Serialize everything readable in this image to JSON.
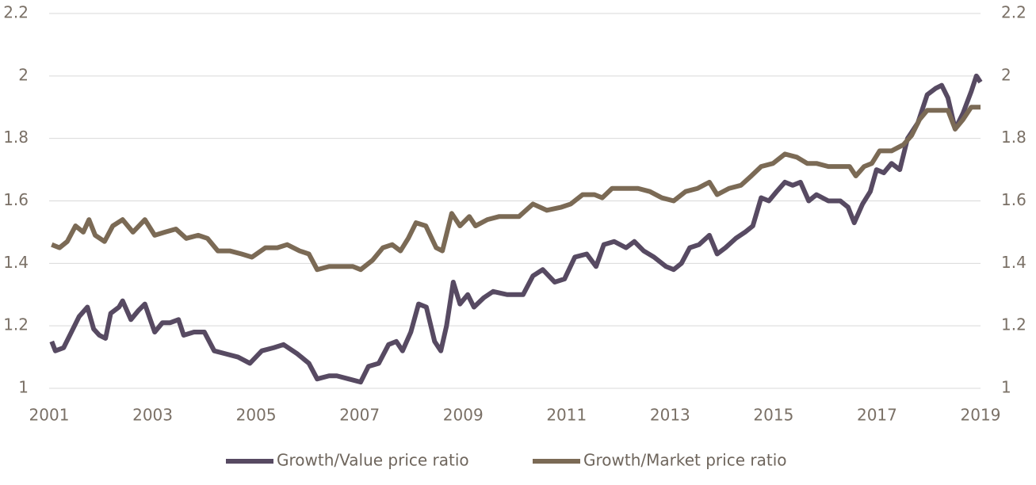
{
  "chart_data": {
    "type": "line",
    "xlim": [
      2001,
      2019
    ],
    "xticks": [
      2001,
      2003,
      2005,
      2007,
      2009,
      2011,
      2013,
      2015,
      2017,
      2019
    ],
    "ylim": [
      1,
      2.2
    ],
    "yticks": [
      1,
      1.2,
      1.4,
      1.6,
      1.8,
      2,
      2.2
    ],
    "y2lim": [
      1,
      2.2
    ],
    "y2ticks": [
      1,
      1.2,
      1.4,
      1.6,
      1.8,
      2,
      2.2
    ],
    "grid": true,
    "legend": "bottom",
    "series": [
      {
        "name": "Growth/Value price ratio",
        "color": "#574a62",
        "x": [
          2001.05,
          2001.12,
          2001.28,
          2001.43,
          2001.58,
          2001.74,
          2001.86,
          2001.97,
          2002.09,
          2002.19,
          2002.35,
          2002.42,
          2002.58,
          2002.73,
          2002.85,
          2003.04,
          2003.19,
          2003.34,
          2003.5,
          2003.6,
          2003.8,
          2004.0,
          2004.19,
          2004.42,
          2004.65,
          2004.88,
          2005.11,
          2005.34,
          2005.53,
          2005.8,
          2006.02,
          2006.18,
          2006.41,
          2006.56,
          2006.79,
          2007.02,
          2007.17,
          2007.37,
          2007.56,
          2007.71,
          2007.83,
          2007.99,
          2008.14,
          2008.29,
          2008.45,
          2008.57,
          2008.68,
          2008.81,
          2008.94,
          2009.09,
          2009.21,
          2009.4,
          2009.58,
          2009.85,
          2010.16,
          2010.35,
          2010.54,
          2010.77,
          2010.96,
          2011.16,
          2011.39,
          2011.57,
          2011.72,
          2011.92,
          2012.15,
          2012.31,
          2012.49,
          2012.69,
          2012.92,
          2013.07,
          2013.22,
          2013.38,
          2013.56,
          2013.76,
          2013.91,
          2014.07,
          2014.27,
          2014.45,
          2014.6,
          2014.76,
          2014.91,
          2015.06,
          2015.22,
          2015.37,
          2015.52,
          2015.68,
          2015.83,
          2016.06,
          2016.29,
          2016.44,
          2016.56,
          2016.72,
          2016.87,
          2016.99,
          2017.13,
          2017.28,
          2017.44,
          2017.59,
          2017.79,
          2017.97,
          2018.13,
          2018.25,
          2018.37,
          2018.51,
          2018.66,
          2018.82,
          2018.92,
          2019.0
        ],
        "values": [
          1.15,
          1.12,
          1.13,
          1.18,
          1.23,
          1.26,
          1.19,
          1.17,
          1.16,
          1.24,
          1.26,
          1.28,
          1.22,
          1.25,
          1.27,
          1.18,
          1.21,
          1.21,
          1.22,
          1.17,
          1.18,
          1.18,
          1.12,
          1.11,
          1.1,
          1.08,
          1.12,
          1.13,
          1.14,
          1.11,
          1.08,
          1.03,
          1.04,
          1.04,
          1.03,
          1.02,
          1.07,
          1.08,
          1.14,
          1.15,
          1.12,
          1.18,
          1.27,
          1.26,
          1.15,
          1.12,
          1.2,
          1.34,
          1.27,
          1.3,
          1.26,
          1.29,
          1.31,
          1.3,
          1.3,
          1.36,
          1.38,
          1.34,
          1.35,
          1.42,
          1.43,
          1.39,
          1.46,
          1.47,
          1.45,
          1.47,
          1.44,
          1.42,
          1.39,
          1.38,
          1.4,
          1.45,
          1.46,
          1.49,
          1.43,
          1.45,
          1.48,
          1.5,
          1.52,
          1.61,
          1.6,
          1.63,
          1.66,
          1.65,
          1.66,
          1.6,
          1.62,
          1.6,
          1.6,
          1.58,
          1.53,
          1.59,
          1.63,
          1.7,
          1.69,
          1.72,
          1.7,
          1.8,
          1.85,
          1.94,
          1.96,
          1.97,
          1.93,
          1.83,
          1.88,
          1.95,
          2.0,
          1.98
        ]
      },
      {
        "name": "Growth/Market price ratio",
        "color": "#7b6a55",
        "x": [
          2001.05,
          2001.2,
          2001.35,
          2001.51,
          2001.66,
          2001.77,
          2001.89,
          2002.07,
          2002.23,
          2002.42,
          2002.62,
          2002.85,
          2003.04,
          2003.24,
          2003.45,
          2003.65,
          2003.88,
          2004.06,
          2004.26,
          2004.49,
          2004.72,
          2004.92,
          2005.18,
          2005.41,
          2005.6,
          2005.84,
          2006.02,
          2006.18,
          2006.41,
          2006.64,
          2006.87,
          2007.02,
          2007.25,
          2007.45,
          2007.63,
          2007.79,
          2007.94,
          2008.09,
          2008.28,
          2008.48,
          2008.6,
          2008.78,
          2008.94,
          2009.12,
          2009.24,
          2009.47,
          2009.7,
          2010.08,
          2010.35,
          2010.62,
          2010.9,
          2011.08,
          2011.31,
          2011.54,
          2011.69,
          2011.88,
          2012.15,
          2012.38,
          2012.61,
          2012.84,
          2013.07,
          2013.3,
          2013.53,
          2013.76,
          2013.91,
          2014.14,
          2014.37,
          2014.57,
          2014.76,
          2014.99,
          2015.22,
          2015.45,
          2015.65,
          2015.83,
          2016.06,
          2016.29,
          2016.47,
          2016.59,
          2016.75,
          2016.9,
          2017.05,
          2017.28,
          2017.51,
          2017.67,
          2017.82,
          2017.97,
          2018.2,
          2018.37,
          2018.51,
          2018.66,
          2018.82,
          2019.0
        ],
        "values": [
          1.46,
          1.45,
          1.47,
          1.52,
          1.5,
          1.54,
          1.49,
          1.47,
          1.52,
          1.54,
          1.5,
          1.54,
          1.49,
          1.5,
          1.51,
          1.48,
          1.49,
          1.48,
          1.44,
          1.44,
          1.43,
          1.42,
          1.45,
          1.45,
          1.46,
          1.44,
          1.43,
          1.38,
          1.39,
          1.39,
          1.39,
          1.38,
          1.41,
          1.45,
          1.46,
          1.44,
          1.48,
          1.53,
          1.52,
          1.45,
          1.44,
          1.56,
          1.52,
          1.55,
          1.52,
          1.54,
          1.55,
          1.55,
          1.59,
          1.57,
          1.58,
          1.59,
          1.62,
          1.62,
          1.61,
          1.64,
          1.64,
          1.64,
          1.63,
          1.61,
          1.6,
          1.63,
          1.64,
          1.66,
          1.62,
          1.64,
          1.65,
          1.68,
          1.71,
          1.72,
          1.75,
          1.74,
          1.72,
          1.72,
          1.71,
          1.71,
          1.71,
          1.68,
          1.71,
          1.72,
          1.76,
          1.76,
          1.78,
          1.81,
          1.86,
          1.89,
          1.89,
          1.89,
          1.83,
          1.86,
          1.9,
          1.9
        ]
      }
    ]
  }
}
